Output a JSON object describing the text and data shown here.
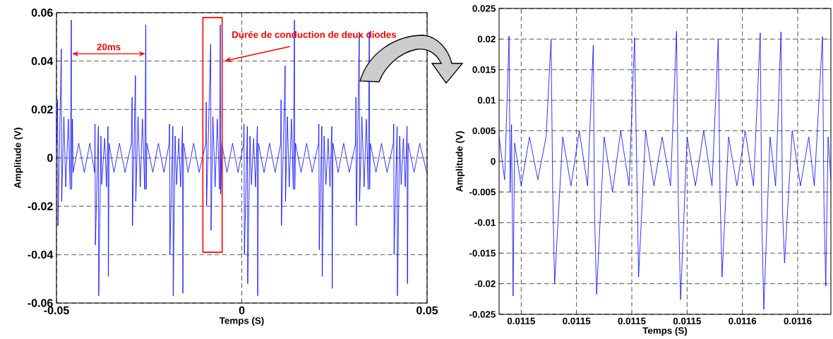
{
  "chart_data": [
    {
      "type": "line",
      "xlabel": "Temps (S)",
      "ylabel": "Amplitude (V)",
      "xlim": [
        -0.05,
        0.05
      ],
      "ylim": [
        -0.06,
        0.06
      ],
      "xticks": [
        -0.05,
        0,
        0.05
      ],
      "yticks": [
        -0.06,
        -0.04,
        -0.02,
        0,
        0.02,
        0.04,
        0.06
      ],
      "grid": true,
      "line_style": "solid",
      "annotations": [
        "20ms",
        "Durée de conduction de deux diodes"
      ],
      "series": [
        {
          "color": "#0000ff",
          "x": [
            -0.0499,
            -0.0497,
            -0.0496,
            -0.0487,
            -0.0486,
            -0.048,
            -0.0475,
            -0.0468,
            -0.0463,
            -0.046,
            -0.0459,
            -0.0457,
            -0.0455,
            -0.044,
            -0.0425,
            -0.041,
            -0.0397,
            -0.0396,
            -0.0395,
            -0.0387,
            -0.0386,
            -0.038,
            -0.0378,
            -0.037,
            -0.0365,
            -0.0361,
            -0.036,
            -0.0358,
            -0.0345,
            -0.033,
            -0.0315,
            -0.0298,
            -0.0296,
            -0.0295,
            -0.0287,
            -0.0286,
            -0.028,
            -0.0274,
            -0.0268,
            -0.0262,
            -0.0259,
            -0.0258,
            -0.0256,
            -0.024,
            -0.0225,
            -0.021,
            -0.0196,
            -0.0195,
            -0.0194,
            -0.0186,
            -0.0185,
            -0.018,
            -0.0176,
            -0.017,
            -0.0165,
            -0.016,
            -0.0159,
            -0.0157,
            -0.0145,
            -0.013,
            -0.0115,
            -0.0097,
            -0.0096,
            -0.0095,
            -0.0084,
            -0.0083,
            -0.0078,
            -0.0072,
            -0.0066,
            -0.006,
            -0.0058,
            -0.0057,
            -0.0054,
            -0.004,
            -0.0025,
            -0.001,
            0.0005,
            0.0006,
            0.0007,
            0.0015,
            0.0016,
            0.0022,
            0.0026,
            0.0032,
            0.0037,
            0.0042,
            0.0043,
            0.0045,
            0.006,
            0.0075,
            0.009,
            0.0105,
            0.0106,
            0.0107,
            0.0117,
            0.0118,
            0.0123,
            0.0128,
            0.0134,
            0.0139,
            0.0142,
            0.0143,
            0.0145,
            0.016,
            0.0175,
            0.019,
            0.0207,
            0.0208,
            0.0209,
            0.0216,
            0.0217,
            0.0222,
            0.0227,
            0.0233,
            0.0238,
            0.0243,
            0.0244,
            0.0246,
            0.026,
            0.0275,
            0.029,
            0.0307,
            0.0308,
            0.0309,
            0.0317,
            0.0318,
            0.0324,
            0.033,
            0.0336,
            0.0341,
            0.0344,
            0.0345,
            0.0347,
            0.0362,
            0.0377,
            0.0392,
            0.0409,
            0.041,
            0.0411,
            0.0419,
            0.042,
            0.0426,
            0.043,
            0.0436,
            0.0441,
            0.0446,
            0.0447,
            0.0449,
            0.0465,
            0.048,
            0.0499
          ],
          "values": [
            0.006,
            0.024,
            -0.028,
            0.045,
            -0.018,
            0.017,
            -0.012,
            0.016,
            -0.013,
            0.057,
            -0.013,
            0.016,
            -0.006,
            0.006,
            -0.006,
            0.006,
            -0.006,
            0.014,
            -0.036,
            0.013,
            -0.057,
            0.009,
            -0.011,
            0.008,
            -0.012,
            0.013,
            -0.049,
            0.006,
            -0.006,
            0.006,
            -0.006,
            0.006,
            0.025,
            -0.028,
            0.034,
            -0.018,
            0.017,
            -0.012,
            0.016,
            -0.013,
            0.055,
            -0.013,
            0.006,
            -0.006,
            0.006,
            -0.006,
            0.006,
            0.014,
            -0.04,
            0.013,
            -0.057,
            0.009,
            -0.011,
            0.008,
            -0.012,
            0.013,
            -0.056,
            0.006,
            -0.006,
            0.006,
            -0.006,
            0.006,
            0.023,
            -0.02,
            0.047,
            -0.03,
            0.017,
            -0.012,
            0.016,
            -0.013,
            0.055,
            -0.015,
            0.006,
            -0.006,
            0.006,
            -0.006,
            0.006,
            0.014,
            -0.04,
            0.013,
            -0.052,
            0.009,
            -0.011,
            0.008,
            -0.012,
            0.013,
            -0.057,
            0.006,
            -0.006,
            0.006,
            -0.006,
            0.006,
            0.024,
            -0.028,
            0.038,
            -0.018,
            0.017,
            -0.012,
            0.016,
            -0.013,
            0.057,
            -0.013,
            0.006,
            -0.006,
            0.006,
            -0.006,
            0.006,
            0.014,
            -0.038,
            0.013,
            -0.049,
            0.009,
            -0.011,
            0.008,
            -0.012,
            0.013,
            -0.054,
            0.006,
            -0.006,
            0.006,
            -0.006,
            0.006,
            0.025,
            -0.028,
            0.052,
            -0.018,
            0.017,
            -0.012,
            0.016,
            -0.013,
            0.052,
            -0.013,
            0.006,
            -0.006,
            0.006,
            -0.006,
            0.006,
            0.014,
            -0.04,
            0.013,
            -0.057,
            0.009,
            -0.011,
            0.008,
            -0.012,
            0.013,
            -0.052,
            0.006,
            -0.006,
            0.006,
            -0.006
          ]
        }
      ]
    },
    {
      "type": "line",
      "xlabel": "Temps (S)",
      "ylabel": "Amplitude (V)",
      "xlim": [
        0.0115422,
        0.0115542
      ],
      "ylim": [
        -0.025,
        0.025
      ],
      "grid": true,
      "line_style": "solid",
      "xticks": [
        {
          "value": 0.011543,
          "label": "0.0115"
        },
        {
          "value": 0.011545,
          "label": "0.0115"
        },
        {
          "value": 0.011547,
          "label": "0.0115"
        },
        {
          "value": 0.011549,
          "label": "0.0115"
        },
        {
          "value": 0.011551,
          "label": "0.0116"
        },
        {
          "value": 0.011553,
          "label": "0.0116"
        }
      ],
      "yticks": [
        -0.025,
        -0.02,
        -0.015,
        -0.01,
        -0.005,
        0,
        0.005,
        0.01,
        0.015,
        0.02,
        0.025
      ],
      "series": [
        {
          "color": "#0000ff",
          "x": [
            0.0115422,
            0.0115424,
            0.011542561,
            0.0115426,
            0.01154265,
            0.011542707,
            0.01154276,
            0.011543,
            0.0115433,
            0.0115436,
            0.0115439,
            0.01154408,
            0.01154414,
            0.011544208,
            0.0115445,
            0.0115448,
            0.0115451,
            0.0115454,
            0.011545607,
            0.01154565,
            0.011545726,
            0.011546,
            0.0115463,
            0.0115466,
            0.0115469,
            0.011547099,
            0.01154718,
            0.011547245,
            0.0115475,
            0.0115478,
            0.0115481,
            0.0115484,
            0.011548618,
            0.01154868,
            0.011548764,
            0.011549,
            0.0115493,
            0.0115496,
            0.0115499,
            0.011550127,
            0.01155019,
            0.011550264,
            0.0115505,
            0.0115508,
            0.0115511,
            0.0115514,
            0.011551646,
            0.0115517,
            0.011551774,
            0.011552,
            0.0115522,
            0.011552396,
            0.01155245,
            0.011552524,
            0.0115528,
            0.0115531,
            0.0115534,
            0.0115536,
            0.011553896,
            0.01155395,
            0.011554015,
            0.0115541,
            0.0115542
          ],
          "values": [
            0.004,
            -0.003,
            0.0205,
            -0.005,
            0.006,
            -0.022,
            0.003,
            -0.004,
            0.004,
            -0.003,
            0.004,
            0.02,
            -0.005,
            -0.02,
            0.004,
            -0.004,
            0.005,
            -0.004,
            0.019,
            -0.008,
            -0.0217,
            0.004,
            -0.005,
            0.005,
            -0.004,
            0.0202,
            null,
            -0.0189,
            0.005,
            -0.004,
            0.004,
            -0.004,
            0.0213,
            -0.006,
            -0.0226,
            0.004,
            -0.004,
            0.005,
            -0.004,
            0.02,
            -0.005,
            -0.0189,
            0.004,
            -0.004,
            0.005,
            -0.004,
            0.021,
            -0.009,
            -0.0242,
            0.004,
            -0.004,
            0.0212,
            -0.008,
            -0.0166,
            0.005,
            -0.004,
            0.004,
            -0.004,
            0.0204,
            -0.007,
            -0.0204,
            0.004,
            -0.003
          ]
        }
      ]
    }
  ]
}
